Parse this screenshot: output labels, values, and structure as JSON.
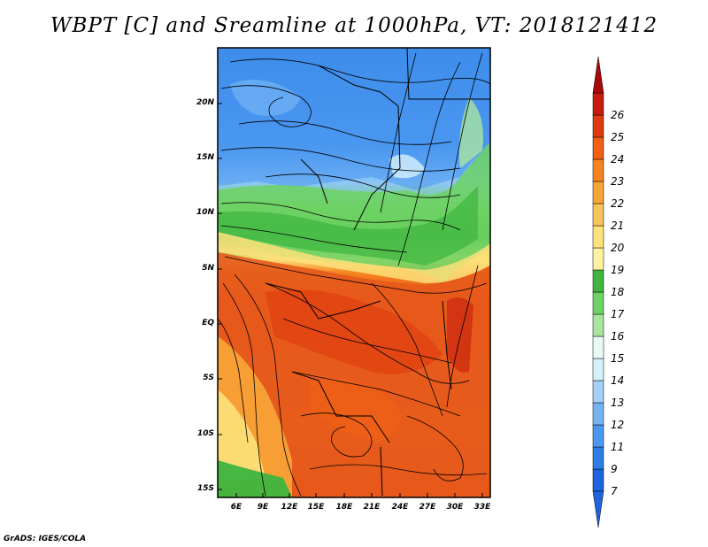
{
  "title": "WBPT [C] and Sreamline at 1000hPa, VT: 2018121412",
  "credit": "GrADS: IGES/COLA",
  "map": {
    "lat_labels": [
      "20N",
      "15N",
      "10N",
      "5N",
      "EQ",
      "5S",
      "10S",
      "15S"
    ],
    "lon_labels": [
      "6E",
      "9E",
      "12E",
      "15E",
      "18E",
      "21E",
      "24E",
      "27E",
      "30E",
      "33E"
    ],
    "lat_range": [
      -15.5,
      23.2
    ],
    "lon_range": [
      4.0,
      33.5
    ]
  },
  "colorbar": {
    "labels": [
      "7",
      "9",
      "11",
      "12",
      "13",
      "14",
      "15",
      "16",
      "17",
      "18",
      "19",
      "20",
      "21",
      "22",
      "23",
      "24",
      "25",
      "26"
    ],
    "colors": [
      "#1e64dc",
      "#2d7fe6",
      "#4a98f0",
      "#74b4f5",
      "#a4d0f9",
      "#d6f0fc",
      "#a9e59f",
      "#6dd264",
      "#3db53e",
      "#fff3a2",
      "#fde17a",
      "#f8c459",
      "#f8a537",
      "#f58420",
      "#ef5f14",
      "#e03b0e",
      "#c71c0c",
      "#a8090b"
    ]
  },
  "colors": {
    "cold_zone": "#4a98f0",
    "transition_zone": "#6dd264",
    "warm_zone": "#e6451a",
    "streamline": "#000000"
  }
}
